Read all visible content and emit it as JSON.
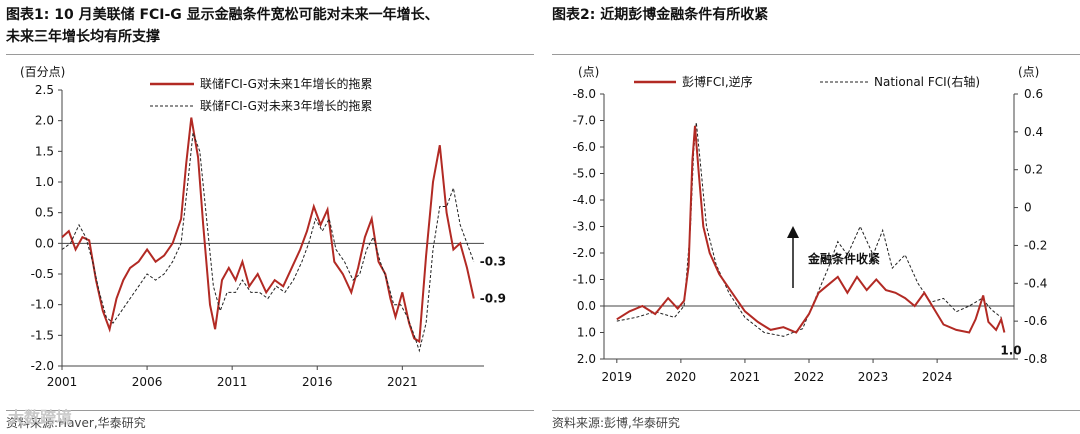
{
  "charts": [
    {
      "title_lines": [
        "图表1:  10 月美联储 FCI-G 显示金融条件宽松可能对未来一年增长、",
        "未来三年增长均有所支撑"
      ],
      "unit_left": "(百分点)",
      "source": "资料来源:Haver,华泰研究"
    },
    {
      "title_lines": [
        "图表2:  近期彭博金融条件有所收紧"
      ],
      "unit_left": "(点)",
      "unit_right": "(点)",
      "arrow_label": "金融条件收紧",
      "source": "资料来源:彭博,华泰研究"
    }
  ],
  "watermark": "大数跨境",
  "colors": {
    "accent": "#b22a24",
    "dashed": "#222222",
    "axis": "#444444"
  },
  "chart_data": [
    {
      "type": "line",
      "x_ticks": [
        "2001",
        "2006",
        "2011",
        "2016",
        "2021"
      ],
      "xlim": [
        2001,
        2025.8
      ],
      "ylim": [
        -2.0,
        2.5
      ],
      "y_ticks": [
        "2.5",
        "2.0",
        "1.5",
        "1.0",
        "0.5",
        "0.0",
        "-0.5",
        "-1.0",
        "-1.5",
        "-2.0"
      ],
      "series": [
        {
          "name": "联储FCI-G对未来1年增长的拖累",
          "style": "solid",
          "end_label": "-0.9",
          "points": [
            [
              2001.0,
              0.1
            ],
            [
              2001.4,
              0.2
            ],
            [
              2001.8,
              -0.1
            ],
            [
              2002.2,
              0.1
            ],
            [
              2002.6,
              0.05
            ],
            [
              2003.0,
              -0.6
            ],
            [
              2003.4,
              -1.1
            ],
            [
              2003.8,
              -1.4
            ],
            [
              2004.2,
              -0.9
            ],
            [
              2004.6,
              -0.6
            ],
            [
              2005.0,
              -0.4
            ],
            [
              2005.5,
              -0.3
            ],
            [
              2006.0,
              -0.1
            ],
            [
              2006.5,
              -0.3
            ],
            [
              2007.0,
              -0.2
            ],
            [
              2007.5,
              0.0
            ],
            [
              2008.0,
              0.4
            ],
            [
              2008.3,
              1.3
            ],
            [
              2008.6,
              2.05
            ],
            [
              2009.0,
              1.4
            ],
            [
              2009.3,
              0.3
            ],
            [
              2009.7,
              -1.0
            ],
            [
              2010.0,
              -1.4
            ],
            [
              2010.4,
              -0.6
            ],
            [
              2010.8,
              -0.4
            ],
            [
              2011.2,
              -0.6
            ],
            [
              2011.6,
              -0.3
            ],
            [
              2012.0,
              -0.7
            ],
            [
              2012.5,
              -0.5
            ],
            [
              2013.0,
              -0.8
            ],
            [
              2013.5,
              -0.6
            ],
            [
              2014.0,
              -0.7
            ],
            [
              2014.5,
              -0.4
            ],
            [
              2015.0,
              -0.1
            ],
            [
              2015.4,
              0.2
            ],
            [
              2015.8,
              0.6
            ],
            [
              2016.2,
              0.3
            ],
            [
              2016.6,
              0.55
            ],
            [
              2017.0,
              -0.3
            ],
            [
              2017.5,
              -0.5
            ],
            [
              2018.0,
              -0.8
            ],
            [
              2018.4,
              -0.4
            ],
            [
              2018.8,
              0.1
            ],
            [
              2019.2,
              0.4
            ],
            [
              2019.6,
              -0.3
            ],
            [
              2020.0,
              -0.5
            ],
            [
              2020.3,
              -0.9
            ],
            [
              2020.6,
              -1.2
            ],
            [
              2021.0,
              -0.8
            ],
            [
              2021.4,
              -1.3
            ],
            [
              2021.7,
              -1.55
            ],
            [
              2022.0,
              -1.6
            ],
            [
              2022.4,
              -0.2
            ],
            [
              2022.8,
              1.0
            ],
            [
              2023.2,
              1.6
            ],
            [
              2023.6,
              0.5
            ],
            [
              2024.0,
              -0.1
            ],
            [
              2024.4,
              0.0
            ],
            [
              2024.8,
              -0.4
            ],
            [
              2025.2,
              -0.9
            ]
          ]
        },
        {
          "name": "联储FCI-G对未来3年增长的拖累",
          "style": "dashed",
          "end_label": "-0.3",
          "points": [
            [
              2001.0,
              -0.1
            ],
            [
              2001.5,
              0.0
            ],
            [
              2002.0,
              0.3
            ],
            [
              2002.4,
              0.1
            ],
            [
              2002.8,
              -0.3
            ],
            [
              2003.2,
              -0.8
            ],
            [
              2003.6,
              -1.2
            ],
            [
              2004.0,
              -1.3
            ],
            [
              2004.5,
              -1.1
            ],
            [
              2005.0,
              -0.9
            ],
            [
              2005.5,
              -0.7
            ],
            [
              2006.0,
              -0.5
            ],
            [
              2006.5,
              -0.6
            ],
            [
              2007.0,
              -0.5
            ],
            [
              2007.5,
              -0.3
            ],
            [
              2008.0,
              0.0
            ],
            [
              2008.4,
              1.0
            ],
            [
              2008.7,
              1.8
            ],
            [
              2009.1,
              1.5
            ],
            [
              2009.5,
              0.4
            ],
            [
              2009.9,
              -0.7
            ],
            [
              2010.3,
              -1.1
            ],
            [
              2010.7,
              -0.8
            ],
            [
              2011.2,
              -0.8
            ],
            [
              2011.6,
              -0.6
            ],
            [
              2012.1,
              -0.8
            ],
            [
              2012.6,
              -0.8
            ],
            [
              2013.1,
              -0.9
            ],
            [
              2013.6,
              -0.7
            ],
            [
              2014.1,
              -0.8
            ],
            [
              2014.6,
              -0.6
            ],
            [
              2015.1,
              -0.3
            ],
            [
              2015.5,
              0.0
            ],
            [
              2015.9,
              0.4
            ],
            [
              2016.3,
              0.2
            ],
            [
              2016.7,
              0.4
            ],
            [
              2017.1,
              -0.1
            ],
            [
              2017.6,
              -0.3
            ],
            [
              2018.1,
              -0.6
            ],
            [
              2018.5,
              -0.5
            ],
            [
              2018.9,
              -0.1
            ],
            [
              2019.3,
              0.1
            ],
            [
              2019.7,
              -0.3
            ],
            [
              2020.1,
              -0.6
            ],
            [
              2020.5,
              -1.0
            ],
            [
              2020.9,
              -1.0
            ],
            [
              2021.3,
              -1.2
            ],
            [
              2021.7,
              -1.5
            ],
            [
              2022.0,
              -1.75
            ],
            [
              2022.4,
              -1.3
            ],
            [
              2022.8,
              -0.1
            ],
            [
              2023.2,
              0.6
            ],
            [
              2023.6,
              0.6
            ],
            [
              2024.0,
              0.9
            ],
            [
              2024.4,
              0.3
            ],
            [
              2024.8,
              0.0
            ],
            [
              2025.2,
              -0.3
            ]
          ]
        }
      ]
    },
    {
      "type": "line",
      "x_ticks": [
        "2019",
        "2020",
        "2021",
        "2022",
        "2023",
        "2024"
      ],
      "xlim": [
        2018.8,
        2025.2
      ],
      "ylim_left": [
        -8.0,
        2.0
      ],
      "y_ticks_left": [
        "-8.0",
        "-7.0",
        "-6.0",
        "-5.0",
        "-4.0",
        "-3.0",
        "-2.0",
        "-1.0",
        "0.0",
        "1.0",
        "2.0"
      ],
      "left_axis_inverted": true,
      "ylim_right": [
        -0.8,
        0.6
      ],
      "y_ticks_right": [
        "0.6",
        "0.4",
        "0.2",
        "0",
        "-0.2",
        "-0.4",
        "-0.6",
        "-0.8"
      ],
      "series": [
        {
          "name": "彭博FCI,逆序",
          "axis": "left",
          "style": "solid",
          "end_label": "1.0",
          "points": [
            [
              2019.0,
              0.5
            ],
            [
              2019.2,
              0.2
            ],
            [
              2019.4,
              0.0
            ],
            [
              2019.6,
              0.3
            ],
            [
              2019.8,
              -0.3
            ],
            [
              2019.95,
              0.1
            ],
            [
              2020.05,
              -0.2
            ],
            [
              2020.12,
              -1.5
            ],
            [
              2020.18,
              -5.5
            ],
            [
              2020.22,
              -6.8
            ],
            [
              2020.28,
              -5.0
            ],
            [
              2020.35,
              -3.0
            ],
            [
              2020.45,
              -2.0
            ],
            [
              2020.6,
              -1.2
            ],
            [
              2020.8,
              -0.5
            ],
            [
              2021.0,
              0.2
            ],
            [
              2021.2,
              0.6
            ],
            [
              2021.4,
              0.9
            ],
            [
              2021.6,
              0.8
            ],
            [
              2021.8,
              1.0
            ],
            [
              2022.0,
              0.3
            ],
            [
              2022.15,
              -0.5
            ],
            [
              2022.3,
              -0.8
            ],
            [
              2022.45,
              -1.1
            ],
            [
              2022.6,
              -0.5
            ],
            [
              2022.75,
              -1.1
            ],
            [
              2022.9,
              -0.6
            ],
            [
              2023.05,
              -1.0
            ],
            [
              2023.2,
              -0.6
            ],
            [
              2023.35,
              -0.5
            ],
            [
              2023.5,
              -0.3
            ],
            [
              2023.65,
              0.0
            ],
            [
              2023.8,
              -0.5
            ],
            [
              2023.95,
              0.1
            ],
            [
              2024.1,
              0.7
            ],
            [
              2024.3,
              0.9
            ],
            [
              2024.5,
              1.0
            ],
            [
              2024.6,
              0.5
            ],
            [
              2024.72,
              -0.4
            ],
            [
              2024.8,
              0.6
            ],
            [
              2024.92,
              0.9
            ],
            [
              2025.0,
              0.5
            ],
            [
              2025.05,
              1.0
            ]
          ]
        },
        {
          "name": "National FCI(右轴)",
          "axis": "right",
          "style": "dashed",
          "points": [
            [
              2019.0,
              -0.6
            ],
            [
              2019.3,
              -0.58
            ],
            [
              2019.6,
              -0.55
            ],
            [
              2019.9,
              -0.58
            ],
            [
              2020.05,
              -0.52
            ],
            [
              2020.15,
              -0.1
            ],
            [
              2020.2,
              0.3
            ],
            [
              2020.24,
              0.45
            ],
            [
              2020.3,
              0.25
            ],
            [
              2020.4,
              -0.1
            ],
            [
              2020.55,
              -0.3
            ],
            [
              2020.75,
              -0.45
            ],
            [
              2021.0,
              -0.58
            ],
            [
              2021.3,
              -0.66
            ],
            [
              2021.6,
              -0.68
            ],
            [
              2021.9,
              -0.64
            ],
            [
              2022.1,
              -0.48
            ],
            [
              2022.3,
              -0.32
            ],
            [
              2022.45,
              -0.18
            ],
            [
              2022.6,
              -0.25
            ],
            [
              2022.8,
              -0.1
            ],
            [
              2023.0,
              -0.25
            ],
            [
              2023.15,
              -0.12
            ],
            [
              2023.3,
              -0.32
            ],
            [
              2023.5,
              -0.25
            ],
            [
              2023.7,
              -0.4
            ],
            [
              2023.9,
              -0.5
            ],
            [
              2024.1,
              -0.48
            ],
            [
              2024.3,
              -0.55
            ],
            [
              2024.5,
              -0.52
            ],
            [
              2024.7,
              -0.48
            ],
            [
              2024.85,
              -0.54
            ],
            [
              2025.0,
              -0.58
            ]
          ]
        }
      ]
    }
  ]
}
